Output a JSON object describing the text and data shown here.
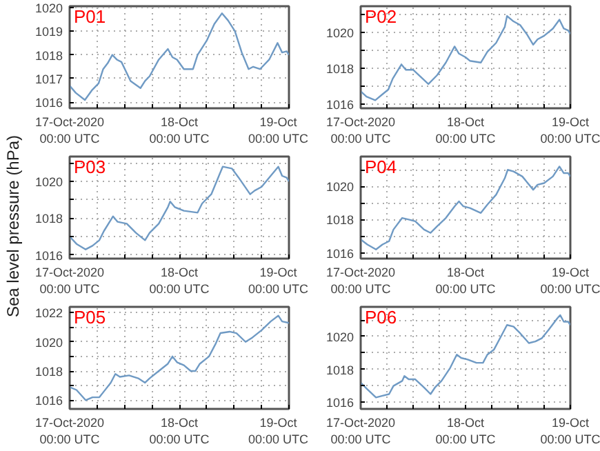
{
  "chart_data": [
    {
      "type": "line",
      "title": "P01",
      "color": "#6f9ac4",
      "grid": true,
      "xlim": [
        "2020-10-17T00:00",
        "2020-10-19T00:00"
      ],
      "ylim": [
        1015.75,
        1020.05
      ],
      "xticks": [
        {
          "value": "2020-10-17T00:00",
          "label": "17-Oct-2020\n00:00 UTC"
        },
        {
          "value": "2020-10-17T06:00",
          "label": null
        },
        {
          "value": "2020-10-17T12:00",
          "label": null
        },
        {
          "value": "2020-10-17T18:00",
          "label": null
        },
        {
          "value": "2020-10-18T00:00",
          "label": "18-Oct\n00:00 UTC"
        },
        {
          "value": "2020-10-18T06:00",
          "label": null
        },
        {
          "value": "2020-10-18T12:00",
          "label": null
        },
        {
          "value": "2020-10-18T18:00",
          "label": null
        },
        {
          "value": "2020-10-19T00:00",
          "label": "19-Oct\n00:00 UTC"
        }
      ],
      "yticks": [
        1016,
        1017,
        1018,
        1019,
        1020
      ],
      "x": [
        "2020-10-17T00:00",
        "2020-10-17T01:20",
        "2020-10-17T03:20",
        "2020-10-17T04:50",
        "2020-10-17T06:20",
        "2020-10-17T07:20",
        "2020-10-17T08:20",
        "2020-10-17T09:20",
        "2020-10-17T10:20",
        "2020-10-17T11:20",
        "2020-10-17T13:20",
        "2020-10-17T15:30",
        "2020-10-17T16:30",
        "2020-10-17T17:30",
        "2020-10-17T19:30",
        "2020-10-17T21:30",
        "2020-10-17T22:30",
        "2020-10-17T23:30",
        "2020-10-18T01:00",
        "2020-10-18T03:00",
        "2020-10-18T04:00",
        "2020-10-18T06:00",
        "2020-10-18T07:40",
        "2020-10-18T09:20",
        "2020-10-18T10:40",
        "2020-10-18T12:10",
        "2020-10-18T13:40",
        "2020-10-18T15:10",
        "2020-10-18T16:10",
        "2020-10-18T17:40",
        "2020-10-18T19:40",
        "2020-10-18T21:30",
        "2020-10-18T22:30",
        "2020-10-18T23:30",
        "2020-10-19T00:00"
      ],
      "values": [
        1016.7,
        1016.4,
        1016.1,
        1016.5,
        1016.8,
        1017.4,
        1017.65,
        1018.0,
        1017.8,
        1017.7,
        1016.9,
        1016.6,
        1016.9,
        1017.1,
        1017.8,
        1018.25,
        1017.9,
        1017.8,
        1017.4,
        1017.4,
        1018.0,
        1018.6,
        1019.3,
        1019.75,
        1019.45,
        1019.0,
        1018.1,
        1017.4,
        1017.5,
        1017.4,
        1017.8,
        1018.5,
        1018.1,
        1018.15,
        1018.0
      ]
    },
    {
      "type": "line",
      "title": "P02",
      "color": "#6f9ac4",
      "grid": true,
      "xlim": [
        "2020-10-17T00:00",
        "2020-10-19T00:00"
      ],
      "ylim": [
        1015.75,
        1021.45
      ],
      "xticks": [
        {
          "value": "2020-10-17T00:00",
          "label": "17-Oct-2020\n00:00 UTC"
        },
        {
          "value": "2020-10-17T06:00",
          "label": null
        },
        {
          "value": "2020-10-17T12:00",
          "label": null
        },
        {
          "value": "2020-10-17T18:00",
          "label": null
        },
        {
          "value": "2020-10-18T00:00",
          "label": "18-Oct\n00:00 UTC"
        },
        {
          "value": "2020-10-18T06:00",
          "label": null
        },
        {
          "value": "2020-10-18T12:00",
          "label": null
        },
        {
          "value": "2020-10-18T18:00",
          "label": null
        },
        {
          "value": "2020-10-19T00:00",
          "label": "19-Oct\n00:00 UTC"
        }
      ],
      "yticks": [
        1016,
        {
          "value": 1017,
          "label": null
        },
        1018,
        {
          "value": 1019,
          "label": null
        },
        1020,
        {
          "value": 1021,
          "label": null
        }
      ],
      "x": [
        "2020-10-17T00:00",
        "2020-10-17T01:20",
        "2020-10-17T03:20",
        "2020-10-17T04:50",
        "2020-10-17T06:20",
        "2020-10-17T07:20",
        "2020-10-17T09:20",
        "2020-10-17T10:20",
        "2020-10-17T12:00",
        "2020-10-17T15:30",
        "2020-10-17T17:30",
        "2020-10-17T19:30",
        "2020-10-17T21:30",
        "2020-10-17T22:30",
        "2020-10-18T00:00",
        "2020-10-18T01:00",
        "2020-10-18T03:30",
        "2020-10-18T05:00",
        "2020-10-18T07:00",
        "2020-10-18T09:00",
        "2020-10-18T09:30",
        "2020-10-18T11:00",
        "2020-10-18T12:30",
        "2020-10-18T14:00",
        "2020-10-18T15:30",
        "2020-10-18T16:30",
        "2020-10-18T18:00",
        "2020-10-18T20:00",
        "2020-10-18T21:30",
        "2020-10-18T22:30",
        "2020-10-18T23:30",
        "2020-10-19T00:00"
      ],
      "values": [
        1016.7,
        1016.4,
        1016.2,
        1016.5,
        1016.8,
        1017.4,
        1018.2,
        1017.9,
        1017.9,
        1017.1,
        1017.6,
        1018.3,
        1019.2,
        1018.8,
        1018.6,
        1018.4,
        1018.3,
        1018.9,
        1019.4,
        1020.3,
        1020.9,
        1020.6,
        1020.4,
        1019.9,
        1019.3,
        1019.6,
        1019.8,
        1020.2,
        1020.7,
        1020.2,
        1020.1,
        1019.9
      ]
    },
    {
      "type": "line",
      "title": "P03",
      "ylabel": "Sea level pressure (hPa)",
      "color": "#6f9ac4",
      "grid": true,
      "xlim": [
        "2020-10-17T00:00",
        "2020-10-19T00:00"
      ],
      "ylim": [
        1015.8,
        1021.35
      ],
      "xticks": [
        {
          "value": "2020-10-17T00:00",
          "label": "17-Oct-2020\n00:00 UTC"
        },
        {
          "value": "2020-10-17T06:00",
          "label": null
        },
        {
          "value": "2020-10-17T12:00",
          "label": null
        },
        {
          "value": "2020-10-17T18:00",
          "label": null
        },
        {
          "value": "2020-10-18T00:00",
          "label": "18-Oct\n00:00 UTC"
        },
        {
          "value": "2020-10-18T06:00",
          "label": null
        },
        {
          "value": "2020-10-18T12:00",
          "label": null
        },
        {
          "value": "2020-10-18T18:00",
          "label": null
        },
        {
          "value": "2020-10-19T00:00",
          "label": "19-Oct\n00:00 UTC"
        }
      ],
      "yticks": [
        1016,
        {
          "value": 1017,
          "label": null
        },
        1018,
        {
          "value": 1019,
          "label": null
        },
        1020,
        {
          "value": 1021,
          "label": null
        }
      ],
      "x": [
        "2020-10-17T00:00",
        "2020-10-17T01:30",
        "2020-10-17T03:30",
        "2020-10-17T05:00",
        "2020-10-17T06:30",
        "2020-10-17T07:30",
        "2020-10-17T09:30",
        "2020-10-17T10:30",
        "2020-10-17T12:30",
        "2020-10-17T14:30",
        "2020-10-17T16:30",
        "2020-10-17T17:30",
        "2020-10-17T19:30",
        "2020-10-17T21:30",
        "2020-10-17T22:00",
        "2020-10-17T23:00",
        "2020-10-18T01:00",
        "2020-10-18T04:00",
        "2020-10-18T05:00",
        "2020-10-18T07:00",
        "2020-10-18T08:30",
        "2020-10-18T09:30",
        "2020-10-18T11:30",
        "2020-10-18T13:00",
        "2020-10-18T15:30",
        "2020-10-18T16:30",
        "2020-10-18T18:00",
        "2020-10-18T20:00",
        "2020-10-18T21:40",
        "2020-10-18T22:30",
        "2020-10-18T23:30",
        "2020-10-19T00:00"
      ],
      "values": [
        1017.0,
        1016.6,
        1016.3,
        1016.5,
        1016.8,
        1017.3,
        1018.1,
        1017.8,
        1017.7,
        1017.2,
        1016.8,
        1017.2,
        1017.7,
        1018.6,
        1018.9,
        1018.6,
        1018.4,
        1018.3,
        1018.8,
        1019.3,
        1020.2,
        1020.8,
        1020.7,
        1020.2,
        1019.3,
        1019.5,
        1019.7,
        1020.3,
        1020.8,
        1020.3,
        1020.2,
        1020.0
      ]
    },
    {
      "type": "line",
      "title": "P04",
      "color": "#6f9ac4",
      "grid": true,
      "xlim": [
        "2020-10-17T00:00",
        "2020-10-19T00:00"
      ],
      "ylim": [
        1015.65,
        1021.8
      ],
      "xticks": [
        {
          "value": "2020-10-17T00:00",
          "label": "17-Oct-2020\n00:00 UTC"
        },
        {
          "value": "2020-10-17T06:00",
          "label": null
        },
        {
          "value": "2020-10-17T12:00",
          "label": null
        },
        {
          "value": "2020-10-17T18:00",
          "label": null
        },
        {
          "value": "2020-10-18T00:00",
          "label": "18-Oct\n00:00 UTC"
        },
        {
          "value": "2020-10-18T06:00",
          "label": null
        },
        {
          "value": "2020-10-18T12:00",
          "label": null
        },
        {
          "value": "2020-10-18T18:00",
          "label": null
        },
        {
          "value": "2020-10-19T00:00",
          "label": "19-Oct\n00:00 UTC"
        }
      ],
      "yticks": [
        1016,
        {
          "value": 1017,
          "label": null
        },
        1018,
        {
          "value": 1019,
          "label": null
        },
        1020,
        {
          "value": 1021,
          "label": null
        }
      ],
      "x": [
        "2020-10-17T00:00",
        "2020-10-17T01:30",
        "2020-10-17T03:30",
        "2020-10-17T05:00",
        "2020-10-17T06:30",
        "2020-10-17T07:30",
        "2020-10-17T09:30",
        "2020-10-17T11:00",
        "2020-10-17T12:30",
        "2020-10-17T14:30",
        "2020-10-17T16:00",
        "2020-10-17T17:30",
        "2020-10-17T19:30",
        "2020-10-17T21:30",
        "2020-10-17T22:30",
        "2020-10-17T23:30",
        "2020-10-18T01:00",
        "2020-10-18T03:30",
        "2020-10-18T05:00",
        "2020-10-18T07:00",
        "2020-10-18T09:00",
        "2020-10-18T09:40",
        "2020-10-18T11:00",
        "2020-10-18T13:00",
        "2020-10-18T15:30",
        "2020-10-18T16:30",
        "2020-10-18T18:00",
        "2020-10-18T20:00",
        "2020-10-18T21:30",
        "2020-10-18T22:30",
        "2020-10-18T23:30",
        "2020-10-19T00:00"
      ],
      "values": [
        1016.8,
        1016.5,
        1016.2,
        1016.5,
        1016.7,
        1017.4,
        1018.1,
        1018.0,
        1017.9,
        1017.4,
        1017.2,
        1017.6,
        1018.1,
        1018.8,
        1019.1,
        1018.8,
        1018.7,
        1018.4,
        1018.9,
        1019.5,
        1020.5,
        1021.0,
        1020.9,
        1020.6,
        1019.8,
        1020.1,
        1020.2,
        1020.6,
        1021.2,
        1020.8,
        1020.8,
        1020.6
      ]
    },
    {
      "type": "line",
      "title": "P05",
      "color": "#6f9ac4",
      "grid": true,
      "xlim": [
        "2020-10-17T00:00",
        "2020-10-19T00:00"
      ],
      "ylim": [
        1015.4,
        1022.4
      ],
      "xticks": [
        {
          "value": "2020-10-17T00:00",
          "label": "17-Oct-2020\n00:00 UTC"
        },
        {
          "value": "2020-10-17T06:00",
          "label": null
        },
        {
          "value": "2020-10-17T12:00",
          "label": null
        },
        {
          "value": "2020-10-17T18:00",
          "label": null
        },
        {
          "value": "2020-10-18T00:00",
          "label": "18-Oct\n00:00 UTC"
        },
        {
          "value": "2020-10-18T06:00",
          "label": null
        },
        {
          "value": "2020-10-18T12:00",
          "label": null
        },
        {
          "value": "2020-10-18T18:00",
          "label": null
        },
        {
          "value": "2020-10-19T00:00",
          "label": "19-Oct\n00:00 UTC"
        }
      ],
      "yticks": [
        1016,
        {
          "value": 1017,
          "label": null
        },
        1018,
        {
          "value": 1019,
          "label": null
        },
        1020,
        {
          "value": 1021,
          "label": null
        },
        1022
      ],
      "x": [
        "2020-10-17T00:00",
        "2020-10-17T01:30",
        "2020-10-17T03:30",
        "2020-10-17T05:00",
        "2020-10-17T06:30",
        "2020-10-17T07:30",
        "2020-10-17T09:00",
        "2020-10-17T10:00",
        "2020-10-17T11:00",
        "2020-10-17T13:00",
        "2020-10-17T15:00",
        "2020-10-17T16:30",
        "2020-10-17T17:30",
        "2020-10-17T19:30",
        "2020-10-17T21:30",
        "2020-10-17T22:30",
        "2020-10-17T23:30",
        "2020-10-18T01:00",
        "2020-10-18T02:30",
        "2020-10-18T03:30",
        "2020-10-18T04:30",
        "2020-10-18T06:30",
        "2020-10-18T08:00",
        "2020-10-18T09:00",
        "2020-10-18T11:00",
        "2020-10-18T12:30",
        "2020-10-18T14:30",
        "2020-10-18T16:00",
        "2020-10-18T18:00",
        "2020-10-18T20:00",
        "2020-10-18T21:40",
        "2020-10-18T22:30",
        "2020-10-19T00:00"
      ],
      "values": [
        1016.9,
        1016.7,
        1016.0,
        1016.2,
        1016.2,
        1016.6,
        1017.2,
        1017.8,
        1017.6,
        1017.7,
        1017.5,
        1017.2,
        1017.5,
        1018.0,
        1018.5,
        1019.0,
        1018.6,
        1018.4,
        1018.0,
        1018.0,
        1018.5,
        1019.0,
        1019.9,
        1020.6,
        1020.7,
        1020.6,
        1020.0,
        1020.3,
        1020.8,
        1021.4,
        1021.8,
        1021.4,
        1021.3
      ]
    },
    {
      "type": "line",
      "title": "P06",
      "color": "#6f9ac4",
      "grid": true,
      "xlim": [
        "2020-10-17T00:00",
        "2020-10-19T00:00"
      ],
      "ylim": [
        1015.6,
        1021.8
      ],
      "xticks": [
        {
          "value": "2020-10-17T00:00",
          "label": "17-Oct-2020\n00:00 UTC"
        },
        {
          "value": "2020-10-17T06:00",
          "label": null
        },
        {
          "value": "2020-10-17T12:00",
          "label": null
        },
        {
          "value": "2020-10-17T18:00",
          "label": null
        },
        {
          "value": "2020-10-18T00:00",
          "label": "18-Oct\n00:00 UTC"
        },
        {
          "value": "2020-10-18T06:00",
          "label": null
        },
        {
          "value": "2020-10-18T12:00",
          "label": null
        },
        {
          "value": "2020-10-18T18:00",
          "label": null
        },
        {
          "value": "2020-10-19T00:00",
          "label": "19-Oct\n00:00 UTC"
        }
      ],
      "yticks": [
        1016,
        {
          "value": 1017,
          "label": null
        },
        1018,
        {
          "value": 1019,
          "label": null
        },
        1020,
        {
          "value": 1021,
          "label": null
        }
      ],
      "x": [
        "2020-10-17T00:00",
        "2020-10-17T01:30",
        "2020-10-17T03:30",
        "2020-10-17T05:00",
        "2020-10-17T06:30",
        "2020-10-17T07:30",
        "2020-10-17T09:30",
        "2020-10-17T10:00",
        "2020-10-17T11:00",
        "2020-10-17T12:30",
        "2020-10-17T14:30",
        "2020-10-17T16:00",
        "2020-10-17T17:00",
        "2020-10-17T18:30",
        "2020-10-17T20:30",
        "2020-10-17T22:00",
        "2020-10-17T23:00",
        "2020-10-18T00:30",
        "2020-10-18T02:30",
        "2020-10-18T04:00",
        "2020-10-18T05:00",
        "2020-10-18T06:30",
        "2020-10-18T08:30",
        "2020-10-18T09:30",
        "2020-10-18T11:00",
        "2020-10-18T12:30",
        "2020-10-18T14:30",
        "2020-10-18T16:00",
        "2020-10-18T17:30",
        "2020-10-18T19:00",
        "2020-10-18T21:00",
        "2020-10-18T21:40",
        "2020-10-18T22:30",
        "2020-10-18T23:30",
        "2020-10-19T00:00"
      ],
      "values": [
        1017.2,
        1016.8,
        1016.3,
        1016.4,
        1016.5,
        1017.0,
        1017.3,
        1017.6,
        1017.4,
        1017.4,
        1016.9,
        1016.5,
        1016.9,
        1017.3,
        1018.1,
        1018.9,
        1018.7,
        1018.6,
        1018.4,
        1018.4,
        1018.9,
        1019.2,
        1020.2,
        1020.7,
        1020.6,
        1020.2,
        1019.6,
        1019.7,
        1019.9,
        1020.4,
        1021.1,
        1021.3,
        1020.9,
        1020.9,
        1020.7
      ]
    }
  ]
}
